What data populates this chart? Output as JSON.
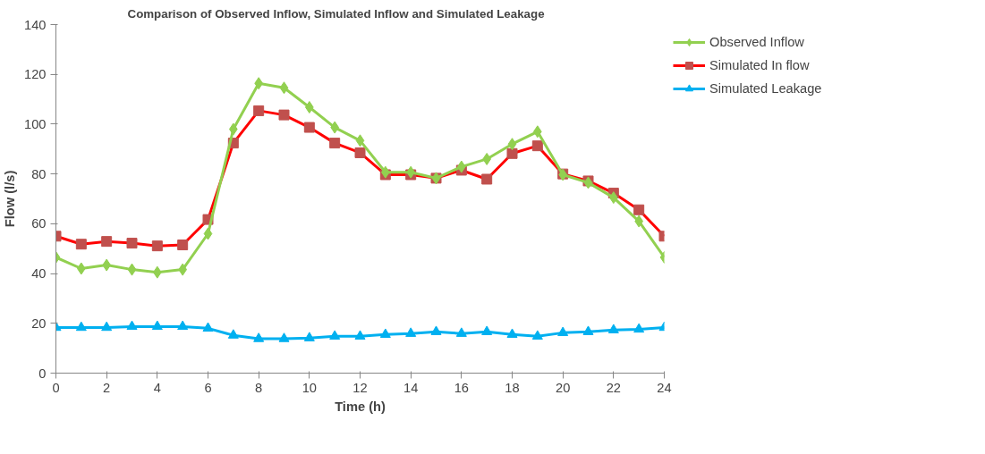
{
  "chart_data": {
    "type": "line",
    "title": "Comparison of Observed Inflow, Simulated Inflow and Simulated Leakage",
    "xlabel": "Time (h)",
    "ylabel": "Flow (l/s)",
    "x": [
      0,
      1,
      2,
      3,
      4,
      5,
      6,
      7,
      8,
      9,
      10,
      11,
      12,
      13,
      14,
      15,
      16,
      17,
      18,
      19,
      20,
      21,
      22,
      23,
      24
    ],
    "series": [
      {
        "name": "Observed Inflow",
        "color": "#92d050",
        "marker": "diamond",
        "values": [
          46.5,
          42,
          43.4,
          41.6,
          40.5,
          41.6,
          56,
          98,
          116.4,
          114.6,
          106.8,
          98.7,
          93.4,
          80.7,
          80.7,
          78.3,
          82.9,
          86,
          92,
          97,
          79.7,
          76.5,
          70.5,
          61,
          46.5
        ]
      },
      {
        "name": "Simulated In flow",
        "color": "#ff0000",
        "marker": "square",
        "values": [
          55,
          51.8,
          52.9,
          52.2,
          51.1,
          51.5,
          61.7,
          92.4,
          105.4,
          103.7,
          98.7,
          92.4,
          88.5,
          79.7,
          79.7,
          78.3,
          81.5,
          77.9,
          88.2,
          91.3,
          80,
          77.2,
          72.3,
          65.6,
          55
        ]
      },
      {
        "name": "Simulated Leakage",
        "color": "#00b0f0",
        "marker": "triangle",
        "values": [
          18.3,
          18.3,
          18.3,
          18.7,
          18.7,
          18.7,
          18,
          15.2,
          13.8,
          13.8,
          14.1,
          14.8,
          14.8,
          15.5,
          15.9,
          16.6,
          15.9,
          16.6,
          15.5,
          14.8,
          16.2,
          16.6,
          17.3,
          17.6,
          18.3
        ]
      }
    ],
    "xlim": [
      0,
      24
    ],
    "xticks": [
      0,
      2,
      4,
      6,
      8,
      10,
      12,
      14,
      16,
      18,
      20,
      22,
      24
    ],
    "ylim": [
      0,
      140
    ],
    "yticks": [
      0,
      20,
      40,
      60,
      80,
      100,
      120,
      140
    ],
    "grid": false,
    "legend": "right",
    "line_style": "solid"
  }
}
